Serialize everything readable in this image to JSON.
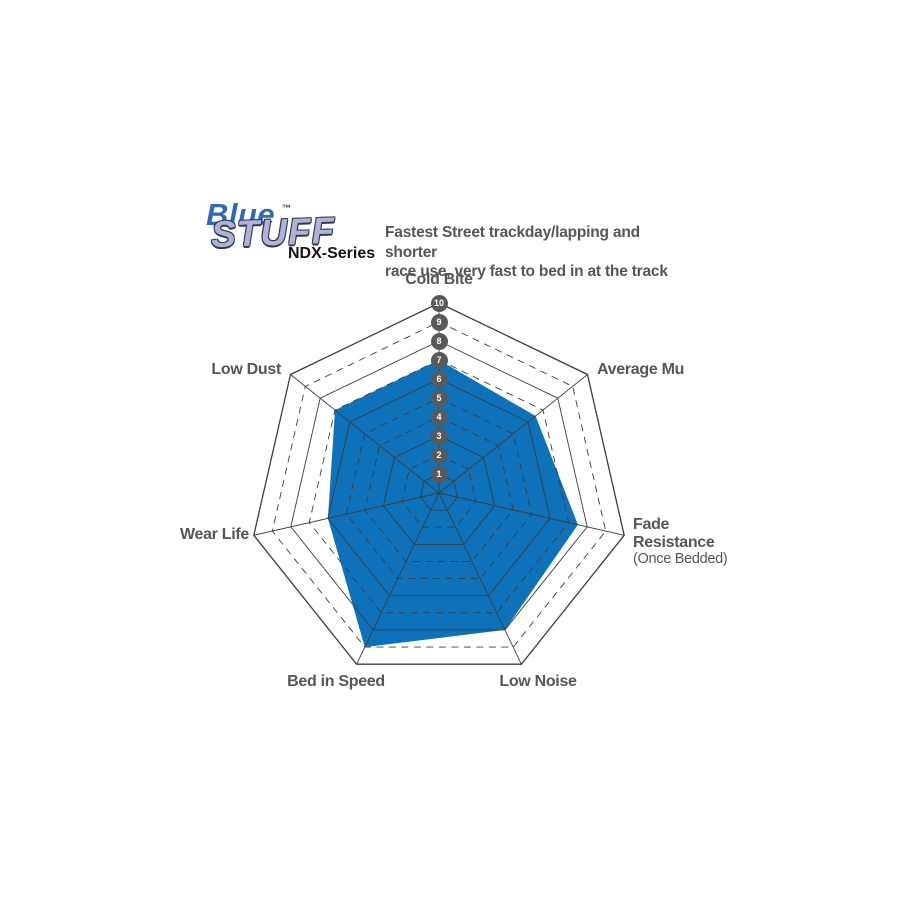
{
  "logo": {
    "word1": "Blue",
    "word2": "STUFF",
    "trademark": "™",
    "series": "NDX-Series"
  },
  "description": "Fastest Street trackday/lapping and shorter\nrace use, very fast to bed in at the track",
  "chart_data": {
    "type": "radar",
    "axes": [
      {
        "label": "Cold Bite",
        "value": 7
      },
      {
        "label": "Average Mu",
        "value": 6.5
      },
      {
        "label": "Fade Resistance",
        "sublabel": "(Once Bedded)",
        "value": 7.5
      },
      {
        "label": "Low Noise",
        "value": 8
      },
      {
        "label": "Bed in Speed",
        "value": 9
      },
      {
        "label": "Wear Life",
        "value": 6
      },
      {
        "label": "Low Dust",
        "value": 7
      }
    ],
    "scale": {
      "min": 0,
      "max": 10,
      "ticks": [
        1,
        2,
        3,
        4,
        5,
        6,
        7,
        8,
        9,
        10
      ]
    },
    "grid": {
      "solid_rings": [
        10,
        8,
        6,
        3,
        1
      ],
      "dashed_rings": [
        9,
        7,
        5,
        4,
        2
      ]
    },
    "colors": {
      "fill": "#0e72ba",
      "grid_line": "#3c3d3f",
      "badge_bg": "#58595b",
      "badge_text": "#ffffff",
      "label_text": "#55565a",
      "logo_blue": "#2d6db5",
      "logo_lavender": "#b2b1d8"
    }
  }
}
